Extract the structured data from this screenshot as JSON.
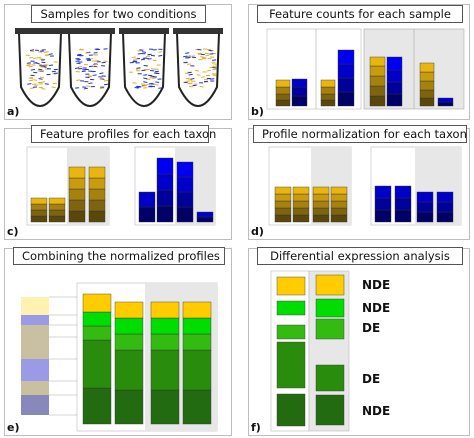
{
  "panels": {
    "a": {
      "letter": "a)",
      "title": "Samples for two conditions"
    },
    "b": {
      "letter": "b)",
      "title": "Feature counts for each sample"
    },
    "c": {
      "letter": "c)",
      "title": "Feature profiles for each taxon"
    },
    "d": {
      "letter": "d)",
      "title": "Profile normalization for each taxon"
    },
    "e": {
      "letter": "e)",
      "title": "Combining the normalized profiles"
    },
    "f": {
      "letter": "f)",
      "title": "Differential expression analysis",
      "labels": [
        "NDE",
        "NDE",
        "DE",
        "DE",
        "NDE"
      ]
    }
  },
  "colors": {
    "gold": [
      "#fdd018",
      "#e8b60f",
      "#c99b0e",
      "#a5810e",
      "#7f6410",
      "#5a470c"
    ],
    "blue": [
      "#0000f0",
      "#0000c8",
      "#00009a",
      "#000066"
    ],
    "green": [
      "#ffcc00",
      "#00dd00",
      "#33bb11",
      "#2a8c0d",
      "#226b10"
    ]
  }
}
